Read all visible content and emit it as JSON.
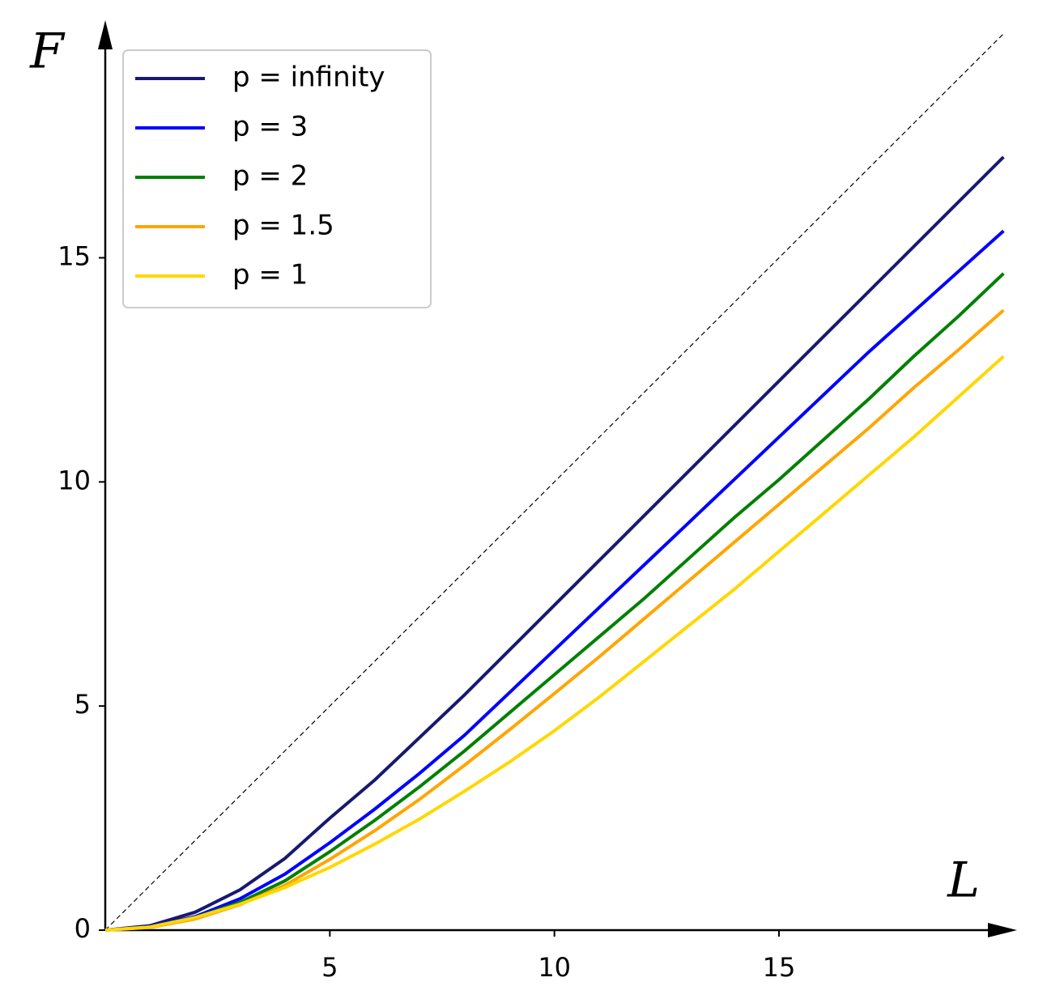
{
  "chart_data": {
    "type": "line",
    "x_label": "L",
    "y_label": "F",
    "x": [
      0,
      1,
      2,
      3,
      4,
      5,
      6,
      7,
      8,
      9,
      10,
      11,
      12,
      13,
      14,
      15,
      16,
      17,
      18,
      19,
      20
    ],
    "series": [
      {
        "name": "p = infinity",
        "color": "#191970",
        "values": [
          0,
          0.1,
          0.4,
          0.9,
          1.6,
          2.5,
          3.35,
          4.3,
          5.25,
          6.25,
          7.25,
          8.25,
          9.25,
          10.25,
          11.25,
          12.25,
          13.25,
          14.25,
          15.25,
          16.25,
          17.25
        ]
      },
      {
        "name": "p = 3",
        "color": "#0000ff",
        "values": [
          0,
          0.08,
          0.3,
          0.7,
          1.25,
          1.95,
          2.7,
          3.5,
          4.35,
          5.3,
          6.25,
          7.2,
          8.15,
          9.1,
          10.05,
          11.0,
          11.95,
          12.9,
          13.8,
          14.7,
          15.6
        ]
      },
      {
        "name": "p = 2",
        "color": "#008000",
        "values": [
          0,
          0.07,
          0.28,
          0.62,
          1.1,
          1.75,
          2.45,
          3.2,
          4.0,
          4.85,
          5.7,
          6.55,
          7.4,
          8.3,
          9.2,
          10.05,
          10.95,
          11.85,
          12.8,
          13.7,
          14.65
        ]
      },
      {
        "name": "p = 1.5",
        "color": "#ffa500",
        "values": [
          0,
          0.06,
          0.25,
          0.57,
          1.0,
          1.58,
          2.22,
          2.92,
          3.68,
          4.47,
          5.28,
          6.1,
          6.95,
          7.8,
          8.65,
          9.5,
          10.35,
          11.2,
          12.1,
          12.95,
          13.83
        ]
      },
      {
        "name": "p = 1",
        "color": "#ffd700",
        "values": [
          0,
          0.07,
          0.28,
          0.58,
          0.95,
          1.4,
          1.92,
          2.48,
          3.1,
          3.75,
          4.45,
          5.2,
          6.0,
          6.8,
          7.6,
          8.45,
          9.3,
          10.15,
          11.0,
          11.9,
          12.8
        ]
      }
    ],
    "reference_line": {
      "x": [
        0,
        20
      ],
      "values": [
        0,
        20
      ],
      "color": "#000000",
      "dashed": true
    },
    "xlim": [
      0,
      20.3
    ],
    "ylim": [
      0,
      20.3
    ],
    "xticks": [
      5,
      10,
      15
    ],
    "yticks": [
      0,
      5,
      10,
      15
    ],
    "grid": false,
    "legend": "upper left"
  }
}
